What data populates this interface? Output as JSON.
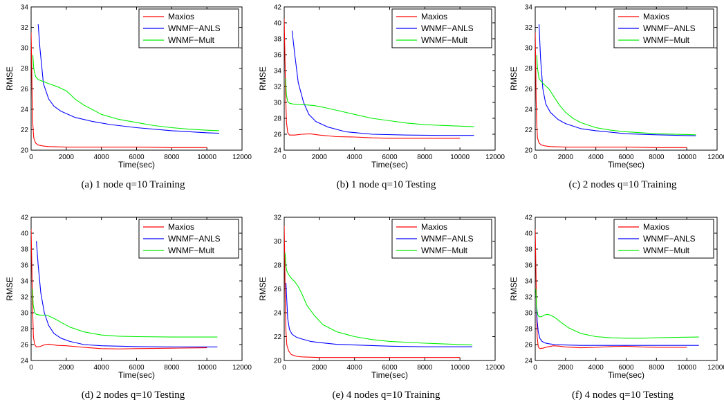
{
  "legend_placement": "top-right",
  "series_colors": {
    "Maxios": "#ff0000",
    "WNMF−ANLS": "#0000ff",
    "WNMF−Mult": "#00ee00"
  },
  "chart_data": [
    {
      "type": "line",
      "caption": "(a)  1 node q=10 Training",
      "xlabel": "Time(sec)",
      "ylabel": "RMSE",
      "xlim": [
        0,
        12000
      ],
      "ylim": [
        20,
        34
      ],
      "xticks": [
        0,
        2000,
        4000,
        6000,
        8000,
        10000,
        12000
      ],
      "yticks": [
        20,
        22,
        24,
        26,
        28,
        30,
        32,
        34
      ],
      "grid": false,
      "series": [
        {
          "name": "Maxios",
          "color": "#ff0000",
          "x": [
            0,
            30,
            60,
            100,
            150,
            250,
            400,
            700,
            1000,
            2000,
            4000,
            6000,
            8000,
            10000
          ],
          "y": [
            31.5,
            28.5,
            25.0,
            22.5,
            21.2,
            20.7,
            20.5,
            20.4,
            20.35,
            20.3,
            20.3,
            20.3,
            20.25,
            20.25
          ]
        },
        {
          "name": "WNMF−ANLS",
          "color": "#0000ff",
          "x": [
            400,
            500,
            700,
            1000,
            1300,
            1700,
            2500,
            3500,
            4500,
            6000,
            8000,
            10000,
            10700
          ],
          "y": [
            32.3,
            30.0,
            26.5,
            25.0,
            24.3,
            23.8,
            23.2,
            22.8,
            22.5,
            22.2,
            21.9,
            21.7,
            21.65
          ]
        },
        {
          "name": "WNMF−Mult",
          "color": "#00ee00",
          "x": [
            100,
            150,
            250,
            400,
            700,
            1000,
            1500,
            2000,
            2500,
            3000,
            4000,
            5000,
            6000,
            7000,
            8000,
            9000,
            10000,
            10700
          ],
          "y": [
            29.3,
            28.0,
            27.2,
            26.9,
            26.7,
            26.5,
            26.2,
            25.8,
            25.0,
            24.4,
            23.5,
            23.0,
            22.7,
            22.4,
            22.2,
            22.05,
            21.95,
            21.9
          ]
        }
      ]
    },
    {
      "type": "line",
      "caption": "(b)  1 node q=10 Testing",
      "xlabel": "Time(sec)",
      "ylabel": "RMSE",
      "xlim": [
        0,
        12000
      ],
      "ylim": [
        24,
        42
      ],
      "xticks": [
        0,
        2000,
        4000,
        6000,
        8000,
        10000,
        12000
      ],
      "yticks": [
        24,
        26,
        28,
        30,
        32,
        34,
        36,
        38,
        40,
        42
      ],
      "grid": false,
      "series": [
        {
          "name": "Maxios",
          "color": "#ff0000",
          "x": [
            0,
            40,
            80,
            130,
            200,
            300,
            600,
            1000,
            1500,
            2000,
            3000,
            4000,
            5000,
            6000,
            8000,
            10000
          ],
          "y": [
            40.5,
            36.0,
            31.0,
            27.5,
            26.2,
            25.9,
            25.9,
            26.0,
            26.05,
            25.9,
            25.7,
            25.65,
            25.55,
            25.5,
            25.5,
            25.5
          ]
        },
        {
          "name": "WNMF−ANLS",
          "color": "#0000ff",
          "x": [
            450,
            600,
            800,
            1100,
            1400,
            1800,
            2500,
            3500,
            5000,
            7000,
            9000,
            10800
          ],
          "y": [
            39.0,
            36.0,
            32.5,
            30.0,
            28.5,
            27.6,
            26.9,
            26.3,
            26.0,
            25.9,
            25.85,
            25.85
          ]
        },
        {
          "name": "WNMF−Mult",
          "color": "#00ee00",
          "x": [
            80,
            120,
            200,
            300,
            500,
            800,
            1200,
            1700,
            2200,
            3000,
            4000,
            5000,
            6000,
            7000,
            8000,
            9000,
            10800
          ],
          "y": [
            33.0,
            31.0,
            30.1,
            29.9,
            29.8,
            29.75,
            29.7,
            29.6,
            29.4,
            29.0,
            28.5,
            28.0,
            27.7,
            27.4,
            27.2,
            27.1,
            26.95
          ]
        }
      ]
    },
    {
      "type": "line",
      "caption": "(c)  2 nodes q=10 Training",
      "xlabel": "Time(sec)",
      "ylabel": "RMSE",
      "xlim": [
        0,
        12000
      ],
      "ylim": [
        20,
        34
      ],
      "xticks": [
        0,
        2000,
        4000,
        6000,
        8000,
        10000,
        12000
      ],
      "yticks": [
        20,
        22,
        24,
        26,
        28,
        30,
        32,
        34
      ],
      "grid": false,
      "series": [
        {
          "name": "Maxios",
          "color": "#ff0000",
          "x": [
            0,
            30,
            60,
            100,
            150,
            250,
            400,
            700,
            1000,
            2000,
            4000,
            6000,
            8000,
            10000
          ],
          "y": [
            31.5,
            28.5,
            25.0,
            22.5,
            21.2,
            20.7,
            20.5,
            20.4,
            20.35,
            20.3,
            20.3,
            20.3,
            20.25,
            20.25
          ]
        },
        {
          "name": "WNMF−ANLS",
          "color": "#0000ff",
          "x": [
            250,
            350,
            500,
            700,
            1000,
            1500,
            2000,
            3000,
            4000,
            6000,
            8000,
            10600
          ],
          "y": [
            32.3,
            29.0,
            26.0,
            24.5,
            23.7,
            23.0,
            22.6,
            22.1,
            21.9,
            21.6,
            21.5,
            21.4
          ]
        },
        {
          "name": "WNMF−Mult",
          "color": "#00ee00",
          "x": [
            100,
            150,
            250,
            400,
            600,
            900,
            1200,
            1600,
            2000,
            2500,
            3000,
            4000,
            5000,
            6000,
            8000,
            10600
          ],
          "y": [
            29.3,
            28.0,
            27.0,
            26.7,
            26.4,
            26.0,
            25.3,
            24.4,
            23.7,
            23.1,
            22.7,
            22.2,
            21.95,
            21.8,
            21.6,
            21.5
          ]
        }
      ]
    },
    {
      "type": "line",
      "caption": "(d)  2 nodes q=10 Testing",
      "xlabel": "Time(sec)",
      "ylabel": "RMSE",
      "xlim": [
        0,
        12000
      ],
      "ylim": [
        24,
        42
      ],
      "xticks": [
        0,
        2000,
        4000,
        6000,
        8000,
        10000,
        12000
      ],
      "yticks": [
        24,
        26,
        28,
        30,
        32,
        34,
        36,
        38,
        40,
        42
      ],
      "grid": false,
      "series": [
        {
          "name": "Maxios",
          "color": "#ff0000",
          "x": [
            0,
            40,
            80,
            130,
            200,
            300,
            500,
            800,
            1000,
            1500,
            2000,
            3000,
            4000,
            5000,
            6000,
            8000,
            10000
          ],
          "y": [
            40.5,
            36.0,
            31.0,
            27.0,
            26.0,
            25.7,
            25.75,
            26.0,
            26.05,
            25.9,
            25.85,
            25.65,
            25.5,
            25.45,
            25.5,
            25.55,
            25.6
          ]
        },
        {
          "name": "WNMF−ANLS",
          "color": "#0000ff",
          "x": [
            300,
            400,
            550,
            750,
            1000,
            1300,
            1700,
            2200,
            3000,
            4000,
            6000,
            8000,
            10600
          ],
          "y": [
            39.0,
            36.0,
            32.5,
            30.0,
            28.4,
            27.4,
            26.8,
            26.4,
            26.0,
            25.85,
            25.75,
            25.7,
            25.7
          ]
        },
        {
          "name": "WNMF−Mult",
          "color": "#00ee00",
          "x": [
            80,
            120,
            200,
            300,
            500,
            800,
            1000,
            1300,
            1700,
            2200,
            3000,
            4000,
            5000,
            6000,
            8000,
            10600
          ],
          "y": [
            33.0,
            31.0,
            30.0,
            29.8,
            29.7,
            29.7,
            29.6,
            29.3,
            28.8,
            28.2,
            27.6,
            27.2,
            27.05,
            27.0,
            26.95,
            26.95
          ]
        }
      ]
    },
    {
      "type": "line",
      "caption": "(e)  4 nodes q=10 Training",
      "xlabel": "Time(sec)",
      "ylabel": "RMSE",
      "xlim": [
        0,
        12000
      ],
      "ylim": [
        20,
        32
      ],
      "xticks": [
        0,
        2000,
        4000,
        6000,
        8000,
        10000,
        12000
      ],
      "yticks": [
        20,
        22,
        24,
        26,
        28,
        30,
        32
      ],
      "grid": false,
      "series": [
        {
          "name": "Maxios",
          "color": "#ff0000",
          "x": [
            0,
            30,
            60,
            100,
            150,
            250,
            400,
            700,
            1000,
            2000,
            4000,
            6000,
            8000,
            10000
          ],
          "y": [
            31.3,
            28.5,
            25.0,
            22.5,
            21.3,
            20.8,
            20.5,
            20.35,
            20.3,
            20.25,
            20.25,
            20.25,
            20.25,
            20.25
          ]
        },
        {
          "name": "WNMF−ANLS",
          "color": "#0000ff",
          "x": [
            100,
            150,
            200,
            300,
            450,
            700,
            1000,
            1500,
            2000,
            3000,
            4000,
            6000,
            8000,
            10700
          ],
          "y": [
            26.5,
            25.0,
            23.5,
            22.6,
            22.2,
            21.95,
            21.8,
            21.6,
            21.5,
            21.35,
            21.3,
            21.2,
            21.15,
            21.15
          ]
        },
        {
          "name": "WNMF−Mult",
          "color": "#00ee00",
          "x": [
            50,
            100,
            150,
            250,
            400,
            600,
            800,
            1000,
            1300,
            1700,
            2200,
            3000,
            4000,
            5000,
            6000,
            8000,
            10700
          ],
          "y": [
            29.0,
            27.9,
            27.5,
            27.2,
            26.9,
            26.6,
            26.2,
            25.6,
            24.6,
            23.8,
            23.0,
            22.4,
            22.0,
            21.75,
            21.6,
            21.45,
            21.3
          ]
        }
      ]
    },
    {
      "type": "line",
      "caption": "(f)  4 nodes q=10 Testing",
      "xlabel": "Time(sec)",
      "ylabel": "RMSE",
      "xlim": [
        0,
        12000
      ],
      "ylim": [
        24,
        42
      ],
      "xticks": [
        0,
        2000,
        4000,
        6000,
        8000,
        10000,
        12000
      ],
      "yticks": [
        24,
        26,
        28,
        30,
        32,
        34,
        36,
        38,
        40,
        42
      ],
      "grid": false,
      "series": [
        {
          "name": "Maxios",
          "color": "#ff0000",
          "x": [
            0,
            40,
            80,
            130,
            200,
            300,
            500,
            800,
            1200,
            1600,
            2000,
            3000,
            4000,
            5000,
            6000,
            7000,
            8000,
            10000
          ],
          "y": [
            40.5,
            36.0,
            31.0,
            27.0,
            25.7,
            25.5,
            25.55,
            25.7,
            25.85,
            25.8,
            25.7,
            25.6,
            25.65,
            25.75,
            25.8,
            25.7,
            25.65,
            25.65
          ]
        },
        {
          "name": "WNMF−ANLS",
          "color": "#0000ff",
          "x": [
            80,
            130,
            200,
            300,
            450,
            650,
            900,
            1300,
            2000,
            3000,
            5000,
            8000,
            10800
          ],
          "y": [
            31.0,
            29.0,
            27.6,
            26.8,
            26.4,
            26.2,
            26.1,
            26.0,
            25.95,
            25.9,
            25.9,
            25.9,
            25.9
          ]
        },
        {
          "name": "WNMF−Mult",
          "color": "#00ee00",
          "x": [
            40,
            80,
            150,
            250,
            400,
            600,
            800,
            1000,
            1300,
            1700,
            2200,
            3000,
            4000,
            5000,
            6000,
            7000,
            8000,
            9000,
            10800
          ],
          "y": [
            33.0,
            31.0,
            29.8,
            29.5,
            29.5,
            29.7,
            29.8,
            29.7,
            29.4,
            28.8,
            28.1,
            27.4,
            27.0,
            26.85,
            26.8,
            26.8,
            26.85,
            26.9,
            26.95
          ]
        }
      ]
    }
  ]
}
